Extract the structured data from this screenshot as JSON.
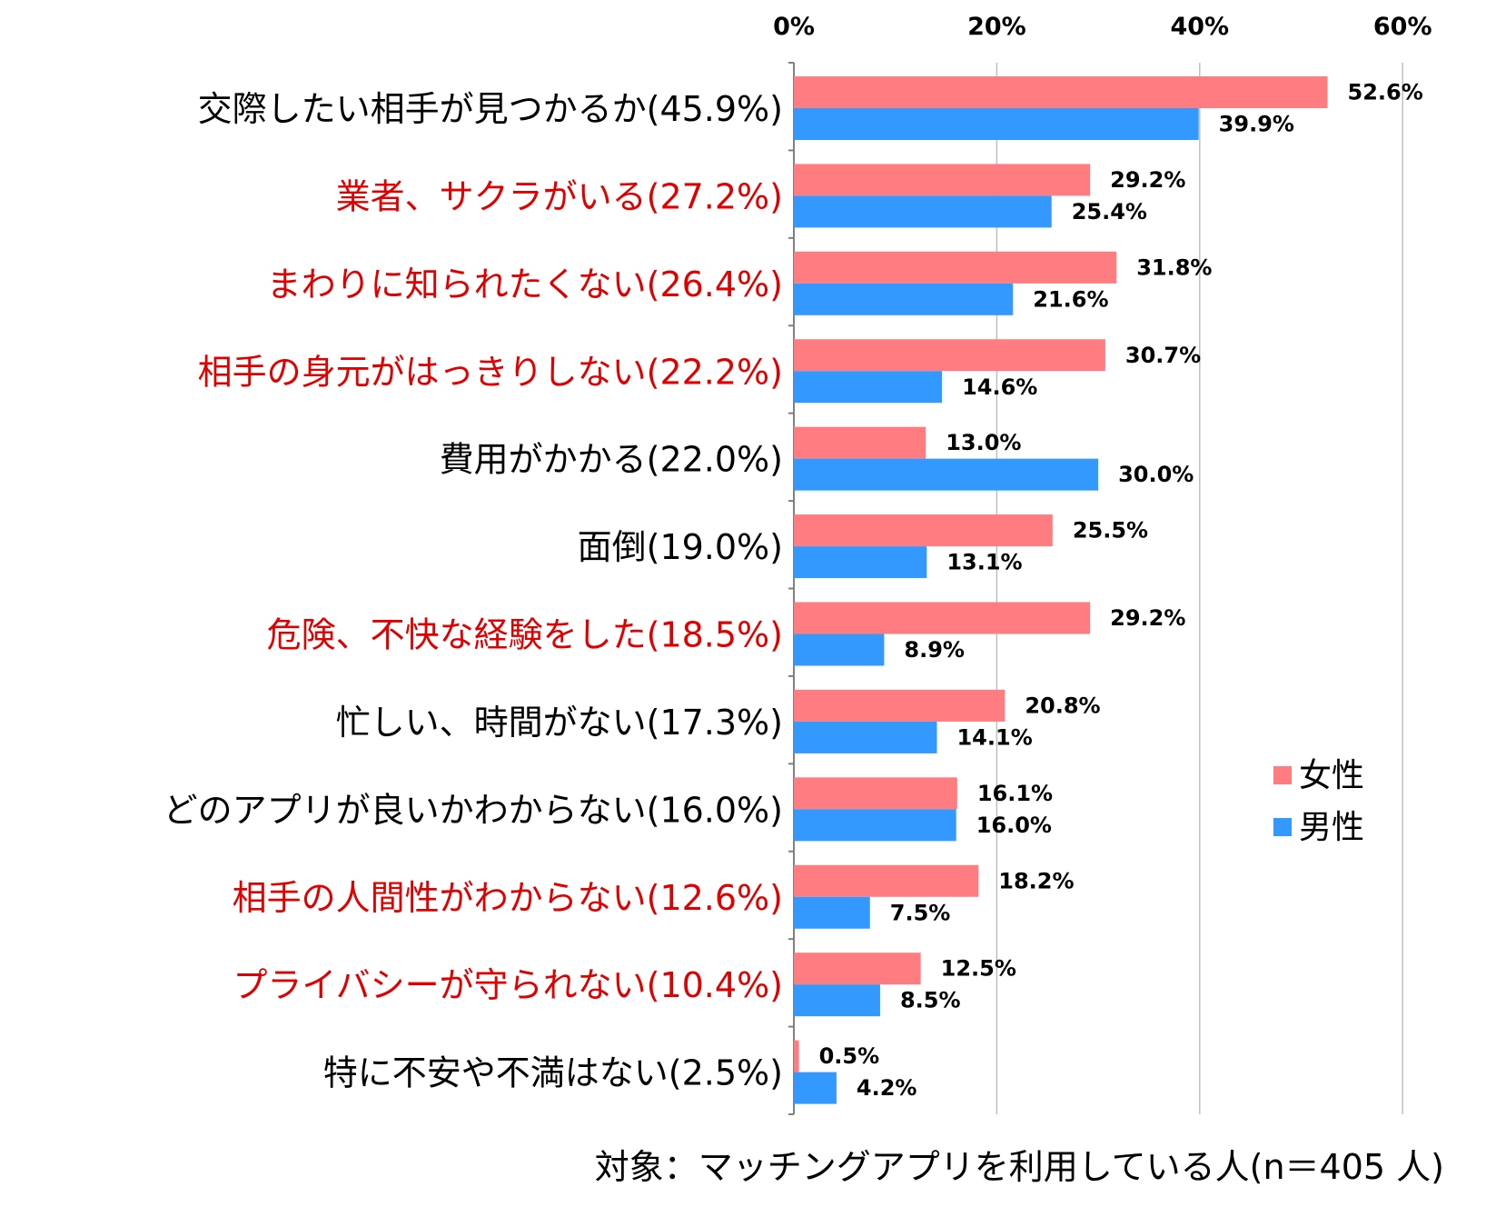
{
  "chart_data": {
    "type": "bar",
    "orientation": "horizontal",
    "categories": [
      "交際したい相手が見つかるか(45.9%)",
      "業者、サクラがいる(27.2%)",
      "まわりに知られたくない(26.4%)",
      "相手の身元がはっきりしない(22.2%)",
      "費用がかかる(22.0%)",
      "面倒(19.0%)",
      "危険、不快な経験をした(18.5%)",
      "忙しい、時間がない(17.3%)",
      "どのアプリが良いかわからない(16.0%)",
      "相手の人間性がわからない(12.6%)",
      "プライバシーが守られない(10.4%)",
      "特に不安や不満はない(2.5%)"
    ],
    "highlighted": [
      false,
      true,
      true,
      true,
      false,
      false,
      true,
      false,
      false,
      true,
      true,
      false
    ],
    "series": [
      {
        "name": "女性",
        "values": [
          52.6,
          29.2,
          31.8,
          30.7,
          13.0,
          25.5,
          29.2,
          20.8,
          16.1,
          18.2,
          12.5,
          0.5
        ],
        "labels": [
          "52.6%",
          "29.2%",
          "31.8%",
          "30.7%",
          "13.0%",
          "25.5%",
          "29.2%",
          "20.8%",
          "16.1%",
          "18.2%",
          "12.5%",
          "0.5%"
        ]
      },
      {
        "name": "男性",
        "values": [
          39.9,
          25.4,
          21.6,
          14.6,
          30.0,
          13.1,
          8.9,
          14.1,
          16.0,
          7.5,
          8.5,
          4.2
        ],
        "labels": [
          "39.9%",
          "25.4%",
          "21.6%",
          "14.6%",
          "30.0%",
          "13.1%",
          "8.9%",
          "14.1%",
          "16.0%",
          "7.5%",
          "8.5%",
          "4.2%"
        ]
      }
    ],
    "xlim": [
      0,
      60
    ],
    "xticks": [
      0,
      20,
      40,
      60
    ],
    "xtick_labels": [
      "0%",
      "20%",
      "40%",
      "60%"
    ],
    "grid": true,
    "legend_position": "right",
    "colors": {
      "female": "#FF7C80",
      "male": "#3399FF",
      "highlight_text": "#E00000",
      "normal_text": "#000000",
      "grid": "#BFBFBF",
      "axis": "#808080"
    },
    "footnote": "対象：マッチングアプリを利用している人(n＝405 人)"
  }
}
